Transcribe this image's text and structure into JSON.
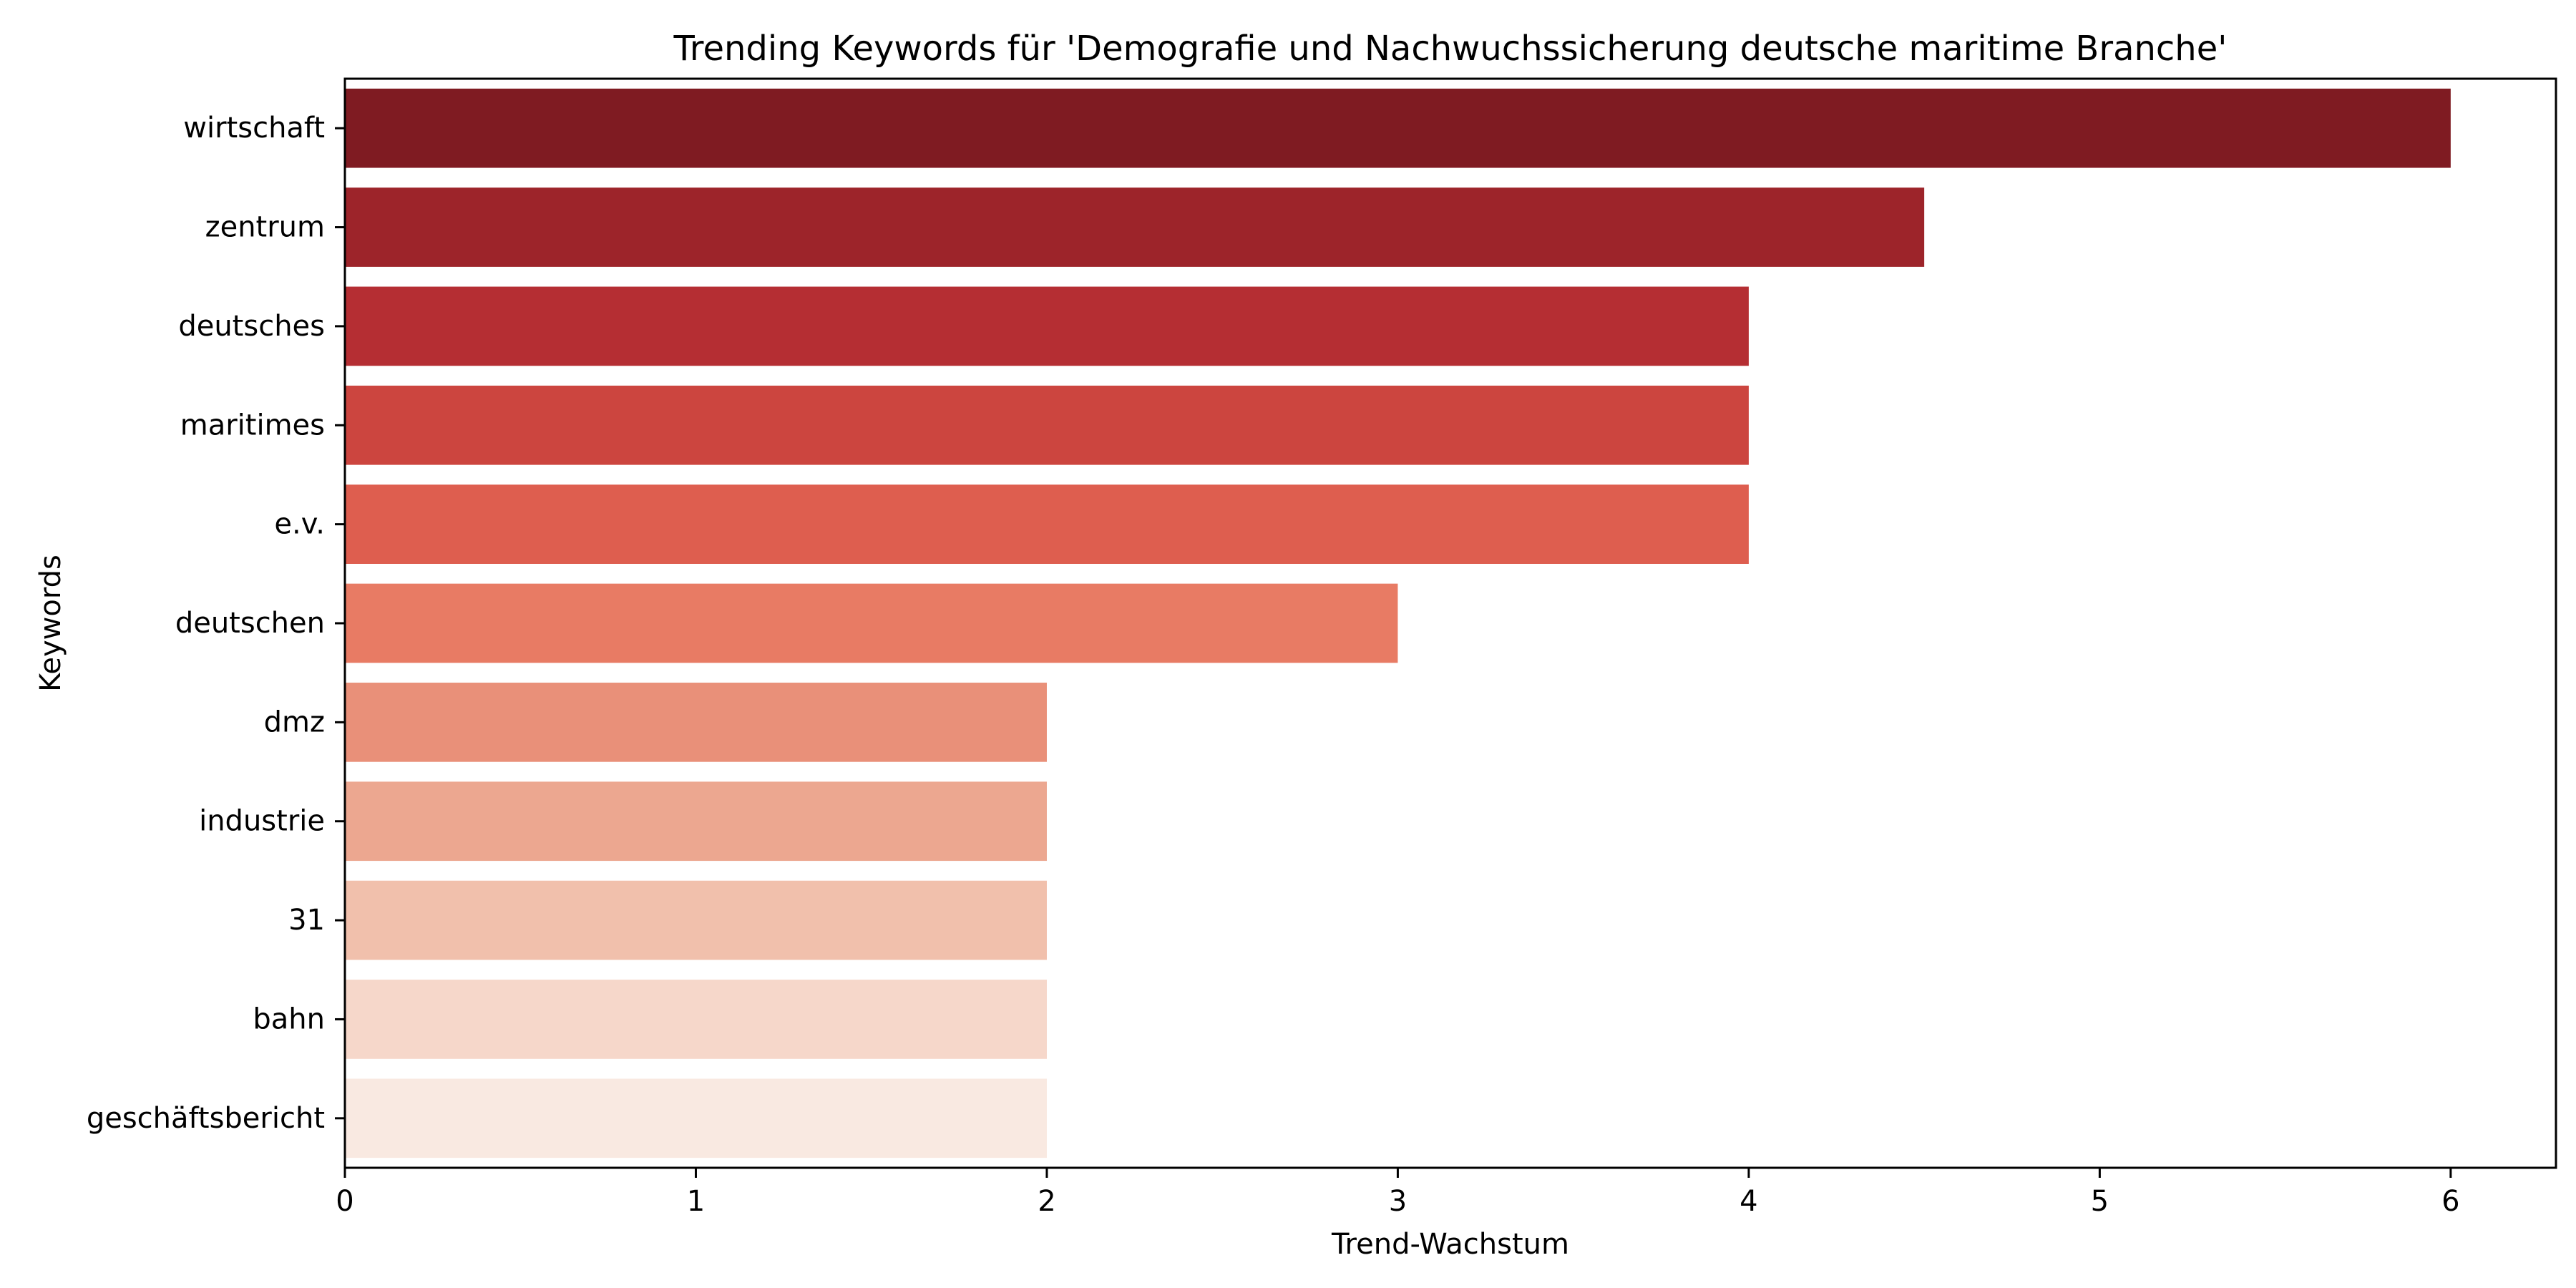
{
  "chart_data": {
    "type": "bar",
    "orientation": "horizontal",
    "title": "Trending Keywords für 'Demografie und Nachwuchssicherung deutsche maritime Branche'",
    "xlabel": "Trend-Wachstum",
    "ylabel": "Keywords",
    "xlim": [
      0,
      6.3
    ],
    "xticks": [
      0,
      1,
      2,
      3,
      4,
      5,
      6
    ],
    "grid": false,
    "categories": [
      "wirtschaft",
      "zentrum",
      "deutsches",
      "maritimes",
      "e.v.",
      "deutschen",
      "dmz",
      "industrie",
      "31",
      "bahn",
      "geschäftsbericht"
    ],
    "values": [
      6,
      4.5,
      4,
      4,
      4,
      3,
      2,
      2,
      2,
      2,
      2
    ],
    "colors": [
      "#7f1b22",
      "#9d242a",
      "#b52e33",
      "#cc453f",
      "#de5e4f",
      "#e87b64",
      "#e99079",
      "#eca790",
      "#f1c0ac",
      "#f6d7ca",
      "#f9e9e1"
    ]
  }
}
